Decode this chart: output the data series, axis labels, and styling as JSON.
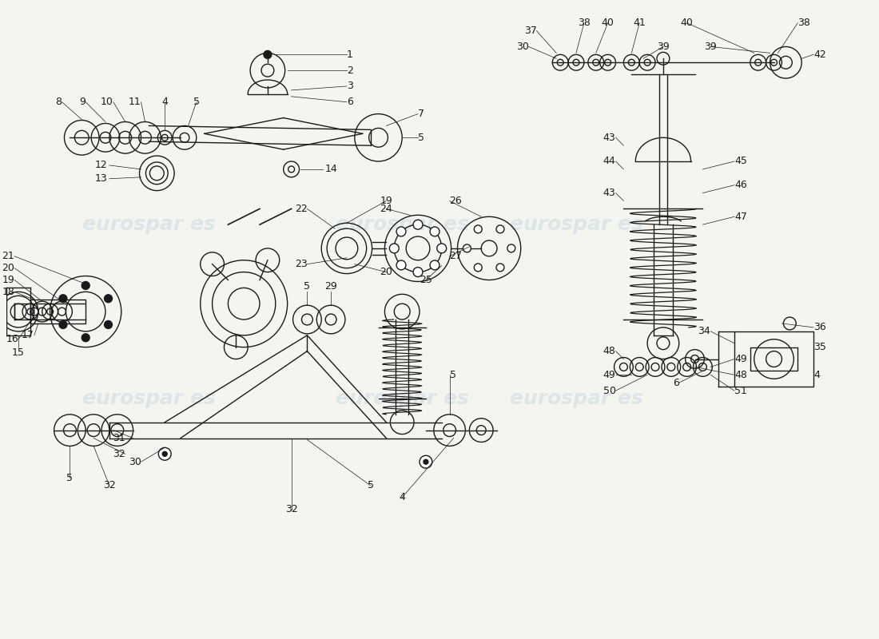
{
  "background_color": "#f5f5f0",
  "line_color": "#1a1a1a",
  "watermark_color": "#b0c8d8",
  "watermark_alpha": 0.35,
  "figsize": [
    11.0,
    8.0
  ],
  "dpi": 100,
  "xlim": [
    0,
    110
  ],
  "ylim": [
    0,
    80
  ],
  "lw": 1.0,
  "wm_positions": [
    [
      22,
      52
    ],
    [
      62,
      52
    ],
    [
      22,
      28
    ],
    [
      62,
      28
    ],
    [
      45,
      38
    ],
    [
      78,
      38
    ]
  ],
  "wm_fontsize": 18,
  "label_fontsize": 9
}
